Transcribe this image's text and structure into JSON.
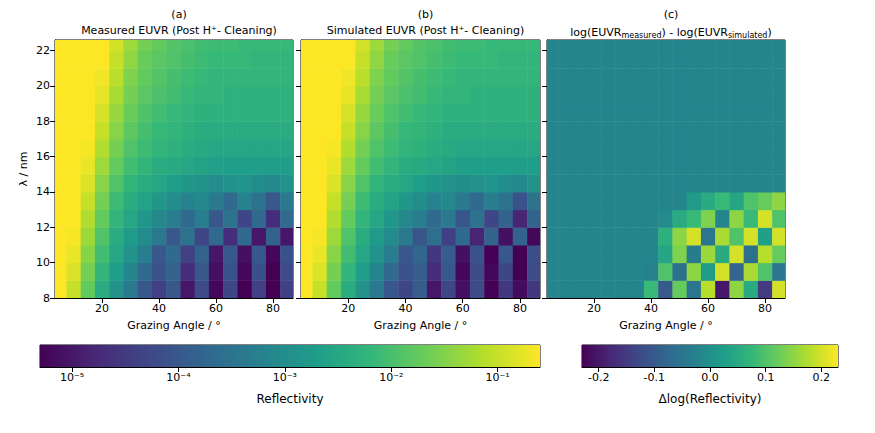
{
  "chart_data": [
    {
      "type": "heatmap",
      "label": "(a)",
      "title": "Measured EUVR (Post H⁺- Cleaning)",
      "x_label": "Grazing Angle / °",
      "y_label": "λ / nm",
      "x": [
        5,
        10,
        15,
        20,
        25,
        30,
        35,
        40,
        45,
        50,
        55,
        60,
        65,
        70,
        75,
        80,
        85
      ],
      "y": [
        8.5,
        9.5,
        10.5,
        11.5,
        12.5,
        13.5,
        14.5,
        15.5,
        16.5,
        17.5,
        18.5,
        19.5,
        20.5,
        21.5,
        22.5
      ],
      "cells": [
        [
          0.38,
          0.1,
          0.018,
          0.004,
          0.0012,
          0.0004,
          0.0001,
          4e-05,
          0.0001,
          1e-05,
          6e-05,
          6e-06,
          5e-05,
          5e-06,
          4e-05,
          5e-06,
          4e-05
        ],
        [
          0.4,
          0.14,
          0.025,
          0.006,
          0.002,
          0.0007,
          0.0002,
          8e-05,
          0.00015,
          2e-05,
          0.0001,
          8e-06,
          8e-05,
          6e-06,
          7e-05,
          5e-06,
          6e-05
        ],
        [
          0.42,
          0.18,
          0.035,
          0.009,
          0.003,
          0.0012,
          0.0005,
          0.0001,
          0.0002,
          4e-05,
          0.00015,
          1e-05,
          0.0001,
          8e-06,
          0.0001,
          6e-06,
          8e-05
        ],
        [
          0.44,
          0.22,
          0.05,
          0.012,
          0.004,
          0.0018,
          0.0009,
          0.0004,
          0.0001,
          0.0003,
          5e-05,
          0.0002,
          2e-05,
          0.0002,
          1e-05,
          0.00015,
          1e-05
        ],
        [
          0.45,
          0.26,
          0.07,
          0.018,
          0.006,
          0.003,
          0.0015,
          0.0008,
          0.0005,
          0.0002,
          0.0005,
          0.0001,
          0.0003,
          5e-05,
          0.0002,
          2e-05,
          0.0002
        ],
        [
          0.46,
          0.3,
          0.1,
          0.025,
          0.008,
          0.004,
          0.0025,
          0.0015,
          0.001,
          0.0006,
          0.0008,
          0.0004,
          0.0002,
          0.0006,
          0.0003,
          0.0001,
          0.0004
        ],
        [
          0.47,
          0.33,
          0.14,
          0.035,
          0.012,
          0.006,
          0.004,
          0.003,
          0.002,
          0.0015,
          0.0012,
          0.001,
          0.0012,
          0.0014,
          0.001,
          0.0008,
          0.0012
        ],
        [
          0.48,
          0.36,
          0.18,
          0.05,
          0.018,
          0.009,
          0.006,
          0.004,
          0.0035,
          0.003,
          0.0025,
          0.0022,
          0.002,
          0.002,
          0.002,
          0.002,
          0.002
        ],
        [
          0.49,
          0.38,
          0.22,
          0.07,
          0.025,
          0.012,
          0.008,
          0.006,
          0.005,
          0.004,
          0.0035,
          0.003,
          0.003,
          0.003,
          0.003,
          0.003,
          0.003
        ],
        [
          0.5,
          0.4,
          0.27,
          0.1,
          0.035,
          0.016,
          0.01,
          0.007,
          0.006,
          0.005,
          0.004,
          0.004,
          0.004,
          0.004,
          0.004,
          0.004,
          0.004
        ],
        [
          0.5,
          0.42,
          0.3,
          0.13,
          0.045,
          0.02,
          0.012,
          0.009,
          0.007,
          0.006,
          0.005,
          0.005,
          0.005,
          0.005,
          0.005,
          0.005,
          0.005
        ],
        [
          0.5,
          0.43,
          0.33,
          0.17,
          0.06,
          0.025,
          0.015,
          0.011,
          0.009,
          0.007,
          0.006,
          0.006,
          0.005,
          0.005,
          0.005,
          0.005,
          0.005
        ],
        [
          0.5,
          0.44,
          0.35,
          0.2,
          0.08,
          0.03,
          0.018,
          0.013,
          0.01,
          0.008,
          0.007,
          0.006,
          0.006,
          0.006,
          0.006,
          0.006,
          0.006
        ],
        [
          0.5,
          0.45,
          0.38,
          0.25,
          0.1,
          0.04,
          0.02,
          0.015,
          0.012,
          0.01,
          0.008,
          0.007,
          0.007,
          0.007,
          0.006,
          0.006,
          0.006
        ],
        [
          0.5,
          0.45,
          0.4,
          0.3,
          0.12,
          0.05,
          0.025,
          0.018,
          0.013,
          0.011,
          0.009,
          0.008,
          0.008,
          0.007,
          0.007,
          0.007,
          0.007
        ]
      ],
      "xlim": [
        3.5,
        87
      ],
      "ylim": [
        8,
        22.6
      ],
      "xticks": [
        20,
        40,
        60,
        80
      ],
      "yticks": [
        8,
        10,
        12,
        14,
        16,
        18,
        20,
        22
      ],
      "colorbar": {
        "label": "Reflectivity",
        "log": true,
        "range": [
          5e-06,
          0.25
        ],
        "ticks": [
          {
            "value": 1e-05,
            "label": "10⁻⁵"
          },
          {
            "value": 0.0001,
            "label": "10⁻⁴"
          },
          {
            "value": 0.001,
            "label": "10⁻³"
          },
          {
            "value": 0.01,
            "label": "10⁻²"
          },
          {
            "value": 0.1,
            "label": "10⁻¹"
          }
        ]
      }
    },
    {
      "type": "heatmap",
      "label": "(b)",
      "title": "Simulated EUVR (Post H⁺- Cleaning)",
      "x_label": "Grazing Angle / °",
      "x": [
        5,
        10,
        15,
        20,
        25,
        30,
        35,
        40,
        45,
        50,
        55,
        60,
        65,
        70,
        75,
        80,
        85
      ],
      "y": [
        8.5,
        9.5,
        10.5,
        11.5,
        12.5,
        13.5,
        14.5,
        15.5,
        16.5,
        17.5,
        18.5,
        19.5,
        20.5,
        21.5,
        22.5
      ],
      "cells": [
        [
          0.38,
          0.1,
          0.018,
          0.004,
          0.0012,
          0.0004,
          0.0001,
          5e-05,
          0.00012,
          1e-05,
          5e-05,
          8e-06,
          6e-05,
          5e-06,
          3e-05,
          7e-06,
          3e-05
        ],
        [
          0.4,
          0.14,
          0.025,
          0.006,
          0.002,
          0.0007,
          0.0002,
          8e-05,
          0.00012,
          2e-05,
          0.0001,
          6e-06,
          6e-05,
          6e-06,
          5e-05,
          5e-06,
          6e-05
        ],
        [
          0.42,
          0.18,
          0.035,
          0.009,
          0.003,
          0.0012,
          0.0005,
          0.0001,
          0.00018,
          3e-05,
          0.00012,
          8e-06,
          8e-05,
          5e-06,
          0.0001,
          5e-06,
          7e-05
        ],
        [
          0.44,
          0.22,
          0.05,
          0.012,
          0.004,
          0.0018,
          0.0009,
          0.0004,
          9e-05,
          0.00025,
          4e-05,
          0.0002,
          1.5e-05,
          0.00015,
          8e-06,
          0.00015,
          6e-06
        ],
        [
          0.45,
          0.26,
          0.07,
          0.018,
          0.006,
          0.003,
          0.0015,
          0.0008,
          0.0005,
          0.0002,
          0.0004,
          9e-05,
          0.0003,
          5e-05,
          0.00015,
          1.5e-05,
          0.00015
        ],
        [
          0.46,
          0.3,
          0.1,
          0.025,
          0.008,
          0.004,
          0.0025,
          0.0015,
          0.001,
          0.0006,
          0.0008,
          0.0004,
          0.0002,
          0.0005,
          0.0003,
          8e-05,
          0.0003
        ],
        [
          0.47,
          0.33,
          0.14,
          0.035,
          0.012,
          0.006,
          0.004,
          0.003,
          0.002,
          0.0015,
          0.0012,
          0.001,
          0.0012,
          0.0014,
          0.001,
          0.0008,
          0.0012
        ],
        [
          0.48,
          0.36,
          0.18,
          0.05,
          0.018,
          0.009,
          0.006,
          0.004,
          0.0035,
          0.003,
          0.0025,
          0.0022,
          0.002,
          0.002,
          0.002,
          0.002,
          0.002
        ],
        [
          0.49,
          0.38,
          0.22,
          0.07,
          0.025,
          0.012,
          0.008,
          0.006,
          0.005,
          0.004,
          0.0035,
          0.003,
          0.003,
          0.003,
          0.003,
          0.003,
          0.003
        ],
        [
          0.5,
          0.4,
          0.27,
          0.1,
          0.035,
          0.016,
          0.01,
          0.007,
          0.006,
          0.005,
          0.004,
          0.004,
          0.004,
          0.004,
          0.004,
          0.004,
          0.004
        ],
        [
          0.5,
          0.42,
          0.3,
          0.13,
          0.045,
          0.02,
          0.012,
          0.009,
          0.007,
          0.006,
          0.005,
          0.005,
          0.005,
          0.005,
          0.005,
          0.005,
          0.005
        ],
        [
          0.5,
          0.43,
          0.33,
          0.17,
          0.06,
          0.025,
          0.015,
          0.011,
          0.009,
          0.007,
          0.006,
          0.006,
          0.005,
          0.005,
          0.005,
          0.005,
          0.005
        ],
        [
          0.5,
          0.44,
          0.35,
          0.2,
          0.08,
          0.03,
          0.018,
          0.013,
          0.01,
          0.008,
          0.007,
          0.006,
          0.006,
          0.006,
          0.006,
          0.006,
          0.006
        ],
        [
          0.5,
          0.45,
          0.38,
          0.25,
          0.1,
          0.04,
          0.02,
          0.015,
          0.012,
          0.01,
          0.008,
          0.007,
          0.007,
          0.007,
          0.006,
          0.006,
          0.006
        ],
        [
          0.5,
          0.45,
          0.4,
          0.3,
          0.12,
          0.05,
          0.025,
          0.018,
          0.013,
          0.011,
          0.009,
          0.008,
          0.008,
          0.007,
          0.007,
          0.007,
          0.007
        ]
      ],
      "xlim": [
        3.5,
        87
      ],
      "ylim": [
        8,
        22.6
      ],
      "xticks": [
        20,
        40,
        60,
        80
      ],
      "yticks": [
        8,
        10,
        12,
        14,
        16,
        18,
        20,
        22
      ],
      "tick_labels": "x"
    },
    {
      "type": "heatmap",
      "label": "(c)",
      "title": "log(EUVRmeasured) - log(EUVRsimulated)",
      "x_label": "Grazing Angle / °",
      "x": [
        5,
        10,
        15,
        20,
        25,
        30,
        35,
        40,
        45,
        50,
        55,
        60,
        65,
        70,
        75,
        80,
        85
      ],
      "y": [
        8.5,
        9.5,
        10.5,
        11.5,
        12.5,
        13.5,
        14.5,
        15.5,
        16.5,
        17.5,
        18.5,
        19.5,
        20.5,
        21.5,
        22.5
      ],
      "cells": [
        [
          -0.02,
          -0.02,
          -0.02,
          -0.02,
          -0.02,
          -0.02,
          -0.02,
          0.08,
          -0.1,
          0.12,
          -0.05,
          0.18,
          -0.2,
          0.15,
          0.05,
          -0.15,
          0.2
        ],
        [
          -0.02,
          -0.02,
          -0.02,
          -0.02,
          -0.02,
          -0.02,
          -0.02,
          -0.03,
          0.1,
          -0.06,
          0.15,
          0.02,
          0.2,
          -0.08,
          0.17,
          0.1,
          -0.05
        ],
        [
          -0.02,
          -0.02,
          -0.02,
          -0.02,
          -0.02,
          -0.02,
          -0.02,
          -0.02,
          0.04,
          0.14,
          -0.04,
          0.16,
          0.05,
          0.2,
          -0.06,
          0.18,
          0.12
        ],
        [
          -0.02,
          -0.02,
          -0.02,
          -0.02,
          -0.02,
          -0.02,
          -0.02,
          -0.02,
          0.06,
          0.15,
          0.2,
          -0.05,
          0.17,
          0.1,
          0.2,
          0.03,
          0.2
        ],
        [
          -0.02,
          -0.02,
          -0.02,
          -0.02,
          -0.02,
          -0.02,
          -0.02,
          -0.02,
          -0.01,
          0.05,
          0.08,
          0.14,
          -0.02,
          0.15,
          0.08,
          0.2,
          0.1
        ],
        [
          -0.02,
          -0.02,
          -0.02,
          -0.02,
          -0.02,
          -0.02,
          -0.02,
          -0.02,
          -0.02,
          -0.02,
          0.02,
          0.05,
          0.08,
          0.04,
          0.1,
          0.12,
          0.15
        ],
        [
          -0.02,
          -0.02,
          -0.02,
          -0.02,
          -0.02,
          -0.02,
          -0.02,
          -0.02,
          -0.02,
          -0.02,
          -0.02,
          -0.02,
          -0.02,
          -0.02,
          -0.02,
          -0.02,
          -0.02
        ],
        [
          -0.02,
          -0.02,
          -0.02,
          -0.02,
          -0.02,
          -0.02,
          -0.02,
          -0.02,
          -0.02,
          -0.02,
          -0.02,
          -0.02,
          -0.02,
          -0.02,
          -0.02,
          -0.02,
          -0.02
        ],
        [
          -0.02,
          -0.02,
          -0.02,
          -0.02,
          -0.02,
          -0.02,
          -0.02,
          -0.02,
          -0.02,
          -0.02,
          -0.02,
          -0.02,
          -0.02,
          -0.02,
          -0.02,
          -0.02,
          -0.02
        ],
        [
          -0.02,
          -0.02,
          -0.02,
          -0.02,
          -0.02,
          -0.02,
          -0.02,
          -0.02,
          -0.02,
          -0.02,
          -0.02,
          -0.02,
          -0.02,
          -0.02,
          -0.02,
          -0.02,
          -0.02
        ],
        [
          -0.02,
          -0.02,
          -0.02,
          -0.02,
          -0.02,
          -0.02,
          -0.02,
          -0.02,
          -0.02,
          -0.02,
          -0.02,
          -0.02,
          -0.02,
          -0.02,
          -0.02,
          -0.02,
          -0.02
        ],
        [
          -0.02,
          -0.02,
          -0.02,
          -0.02,
          -0.02,
          -0.02,
          -0.02,
          -0.02,
          -0.02,
          -0.02,
          -0.02,
          -0.02,
          -0.02,
          -0.02,
          -0.02,
          -0.02,
          -0.02
        ],
        [
          -0.02,
          -0.02,
          -0.02,
          -0.02,
          -0.02,
          -0.02,
          -0.02,
          -0.02,
          -0.02,
          -0.02,
          -0.02,
          -0.02,
          -0.02,
          -0.02,
          -0.02,
          -0.02,
          -0.02
        ],
        [
          -0.02,
          -0.02,
          -0.02,
          -0.02,
          -0.02,
          -0.02,
          -0.02,
          -0.02,
          -0.02,
          -0.02,
          -0.02,
          -0.02,
          -0.02,
          -0.02,
          -0.02,
          -0.02,
          -0.02
        ],
        [
          -0.02,
          -0.02,
          -0.02,
          -0.02,
          -0.02,
          -0.02,
          -0.02,
          -0.02,
          -0.02,
          -0.02,
          -0.02,
          -0.02,
          -0.02,
          -0.02,
          -0.02,
          -0.02,
          -0.02
        ]
      ],
      "xlim": [
        3.5,
        87
      ],
      "ylim": [
        8,
        22.6
      ],
      "xticks": [
        20,
        40,
        60,
        80
      ],
      "yticks": [
        8,
        10,
        12,
        14,
        16,
        18,
        20,
        22
      ],
      "tick_labels": "x",
      "colorbar": {
        "label": "Δlog(Reflectivity)",
        "range": [
          -0.23,
          0.23
        ],
        "ticks": [
          -0.2,
          -0.1,
          {
            "value": 0,
            "label": "0.0"
          },
          0.1,
          0.2
        ]
      }
    }
  ]
}
